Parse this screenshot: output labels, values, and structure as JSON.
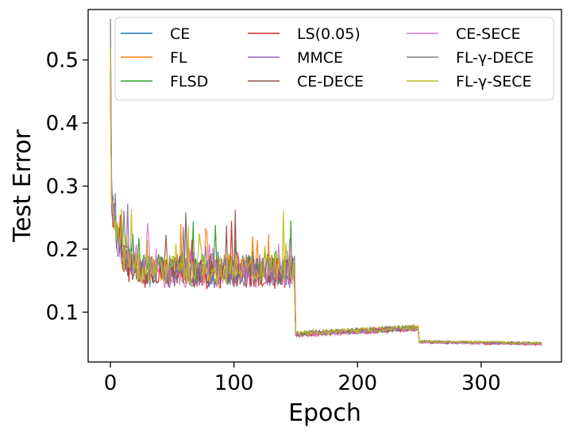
{
  "chart_data": {
    "type": "line",
    "title": "",
    "xlabel": "Epoch",
    "ylabel": "Test Error",
    "xlim": [
      -18,
      365
    ],
    "ylim": [
      0.021,
      0.58
    ],
    "xticks": [
      0,
      100,
      200,
      300
    ],
    "yticks": [
      0.1,
      0.2,
      0.3,
      0.4,
      0.5
    ],
    "xtick_labels": [
      "0",
      "100",
      "200",
      "300"
    ],
    "ytick_labels": [
      "0.1",
      "0.2",
      "0.3",
      "0.4",
      "0.5"
    ],
    "grid": false,
    "legend_position": "top-right",
    "legend_columns": 3,
    "schedule": {
      "epochs": 350,
      "start_error": 0.5,
      "phase1": {
        "end_epoch": 149,
        "mean_error": 0.165,
        "noise": 0.025
      },
      "phase2": {
        "start_epoch": 150,
        "end_epoch": 249,
        "start_error": 0.065,
        "end_error": 0.075
      },
      "phase3": {
        "start_epoch": 250,
        "end_epoch": 349,
        "start_error": 0.053,
        "end_error": 0.05
      }
    },
    "series": [
      {
        "name": "CE",
        "color": "#1f77b4",
        "peak": 0.565,
        "offset": 0.0
      },
      {
        "name": "FL",
        "color": "#ff7f0e",
        "peak": 0.5,
        "offset": 0.002
      },
      {
        "name": "FLSD",
        "color": "#2ca02c",
        "peak": 0.48,
        "offset": 0.003
      },
      {
        "name": "LS(0.05)",
        "color": "#d62728",
        "peak": 0.46,
        "offset": -0.004
      },
      {
        "name": "MMCE",
        "color": "#9467bd",
        "peak": 0.47,
        "offset": -0.002
      },
      {
        "name": "CE-DECE",
        "color": "#8c564b",
        "peak": 0.49,
        "offset": 0.001
      },
      {
        "name": "CE-SECE",
        "color": "#e377c2",
        "peak": 0.47,
        "offset": -0.003
      },
      {
        "name": "FL-γ-DECE",
        "color": "#7f7f7f",
        "peak": 0.565,
        "offset": 0.002
      },
      {
        "name": "FL-γ-SECE",
        "color": "#bcbd22",
        "peak": 0.52,
        "offset": 0.004
      }
    ]
  }
}
